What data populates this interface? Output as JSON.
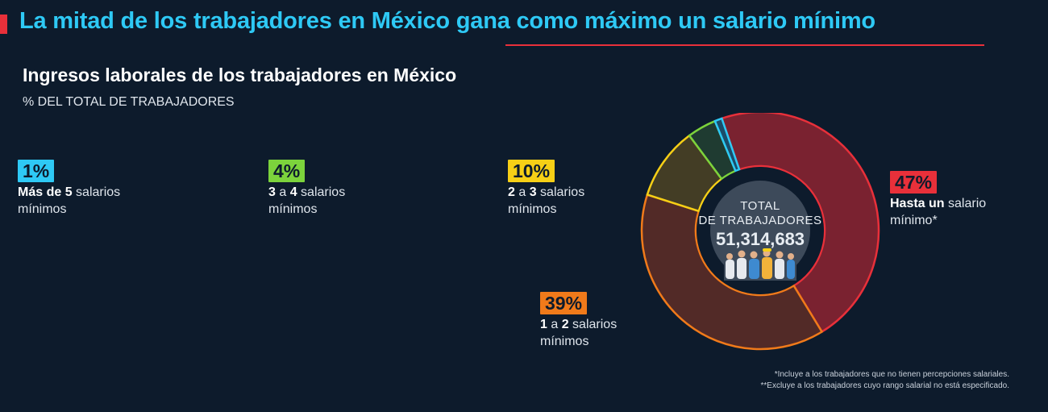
{
  "header": {
    "headline_part1": "La mitad de los trabajadores en México ",
    "headline_part2": "gana como máximo un salario mínimo"
  },
  "colors": {
    "accent_red": "#e8303a",
    "headline_blue": "#2ec9f5",
    "background": "#0d1b2c"
  },
  "chart_data": {
    "type": "pie",
    "title": "Ingresos laborales de los trabajadores en México",
    "subtitle": "% DEL TOTAL DE TRABAJADORES",
    "center_label_line1": "TOTAL",
    "center_label_line2": "DE TRABAJADORES",
    "center_value": "51,314,683",
    "unit": "%",
    "slices": [
      {
        "value": 47,
        "value_label": "47%",
        "label_bold": "Hasta un",
        "label_rest": " salario",
        "label_line2": "mínimo*",
        "color": "#e8303a",
        "fill": "#7a2230"
      },
      {
        "value": 39,
        "value_label": "39%",
        "label_bold1": "1",
        "label_mid": " a ",
        "label_bold2": "2",
        "label_rest": " salarios",
        "label_line2": "mínimos",
        "color": "#f07a1a",
        "fill": "#522a27"
      },
      {
        "value": 10,
        "value_label": "10%",
        "label_bold1": "2",
        "label_mid": " a ",
        "label_bold2": "3",
        "label_rest": " salarios",
        "label_line2": "mínimos",
        "color": "#f6cf16",
        "fill": "#433d25"
      },
      {
        "value": 4,
        "value_label": "4%",
        "label_bold1": "3",
        "label_mid": " a ",
        "label_bold2": "4",
        "label_rest": " salarios",
        "label_line2": "mínimos",
        "color": "#7cd33c",
        "fill": "#1f3b31"
      },
      {
        "value": 1,
        "value_label": "1%",
        "label_bold": "Más de 5",
        "label_rest": " salarios",
        "label_line2": "mínimos",
        "color": "#2ec9f5",
        "fill": "#1b4d6a"
      }
    ]
  },
  "footnotes": {
    "note1": "*Incluye a los trabajadores que no tienen percepciones salariales.",
    "note2": "**Excluye a los trabajadores cuyo rango salarial no está especificado."
  }
}
